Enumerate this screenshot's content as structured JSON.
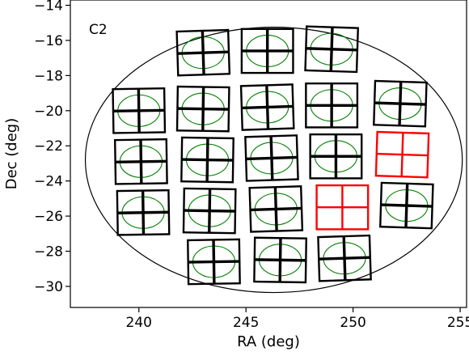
{
  "chart_data": {
    "type": "scatter",
    "panel_label": "C2",
    "xlabel": "RA (deg)",
    "ylabel": "Dec (deg)",
    "xlim": [
      236.8,
      255.3
    ],
    "ylim": [
      -31.2,
      -13.7
    ],
    "xticks": [
      240,
      245,
      250,
      255
    ],
    "yticks": [
      -14,
      -16,
      -18,
      -20,
      -22,
      -24,
      -26,
      -28,
      -30
    ],
    "xtick_labels": [
      "240",
      "245",
      "250",
      "255"
    ],
    "ytick_labels": [
      "−14",
      "−16",
      "−18",
      "−20",
      "−22",
      "−24",
      "−26",
      "−28",
      "−30"
    ],
    "grid": false,
    "legend": "none",
    "boundary_ellipse": {
      "center": [
        246.3,
        -22.8
      ],
      "half_width_ra": 8.8,
      "half_height_dec": 7.55
    },
    "colors": {
      "good_chip": "#000000",
      "bad_chip": "#ff0000",
      "chip_ellipse": "#008000",
      "boundary": "#000000"
    },
    "ccds": [
      {
        "ra": 243.0,
        "dec": -16.7,
        "width_ra": 2.4,
        "height_dec": 2.5,
        "status": "good"
      },
      {
        "ra": 246.0,
        "dec": -16.6,
        "width_ra": 2.4,
        "height_dec": 2.5,
        "status": "good"
      },
      {
        "ra": 249.0,
        "dec": -16.5,
        "width_ra": 2.4,
        "height_dec": 2.5,
        "status": "good"
      },
      {
        "ra": 240.0,
        "dec": -20.0,
        "width_ra": 2.4,
        "height_dec": 2.5,
        "status": "good"
      },
      {
        "ra": 243.0,
        "dec": -19.9,
        "width_ra": 2.4,
        "height_dec": 2.5,
        "status": "good"
      },
      {
        "ra": 246.0,
        "dec": -19.8,
        "width_ra": 2.4,
        "height_dec": 2.5,
        "status": "good"
      },
      {
        "ra": 249.0,
        "dec": -19.7,
        "width_ra": 2.4,
        "height_dec": 2.5,
        "status": "good"
      },
      {
        "ra": 252.2,
        "dec": -19.6,
        "width_ra": 2.4,
        "height_dec": 2.5,
        "status": "good"
      },
      {
        "ra": 240.1,
        "dec": -22.9,
        "width_ra": 2.4,
        "height_dec": 2.5,
        "status": "good"
      },
      {
        "ra": 243.2,
        "dec": -22.8,
        "width_ra": 2.4,
        "height_dec": 2.5,
        "status": "good"
      },
      {
        "ra": 246.2,
        "dec": -22.7,
        "width_ra": 2.4,
        "height_dec": 2.5,
        "status": "good"
      },
      {
        "ra": 249.2,
        "dec": -22.6,
        "width_ra": 2.4,
        "height_dec": 2.5,
        "status": "good"
      },
      {
        "ra": 252.3,
        "dec": -22.5,
        "width_ra": 2.4,
        "height_dec": 2.5,
        "status": "bad"
      },
      {
        "ra": 240.2,
        "dec": -25.8,
        "width_ra": 2.4,
        "height_dec": 2.5,
        "status": "good"
      },
      {
        "ra": 243.3,
        "dec": -25.7,
        "width_ra": 2.4,
        "height_dec": 2.5,
        "status": "good"
      },
      {
        "ra": 246.4,
        "dec": -25.6,
        "width_ra": 2.4,
        "height_dec": 2.5,
        "status": "good"
      },
      {
        "ra": 249.5,
        "dec": -25.5,
        "width_ra": 2.4,
        "height_dec": 2.5,
        "status": "bad"
      },
      {
        "ra": 252.5,
        "dec": -25.4,
        "width_ra": 2.4,
        "height_dec": 2.5,
        "status": "good"
      },
      {
        "ra": 243.5,
        "dec": -28.6,
        "width_ra": 2.4,
        "height_dec": 2.5,
        "status": "good"
      },
      {
        "ra": 246.6,
        "dec": -28.5,
        "width_ra": 2.4,
        "height_dec": 2.5,
        "status": "good"
      },
      {
        "ra": 249.6,
        "dec": -28.4,
        "width_ra": 2.4,
        "height_dec": 2.5,
        "status": "good"
      }
    ]
  }
}
